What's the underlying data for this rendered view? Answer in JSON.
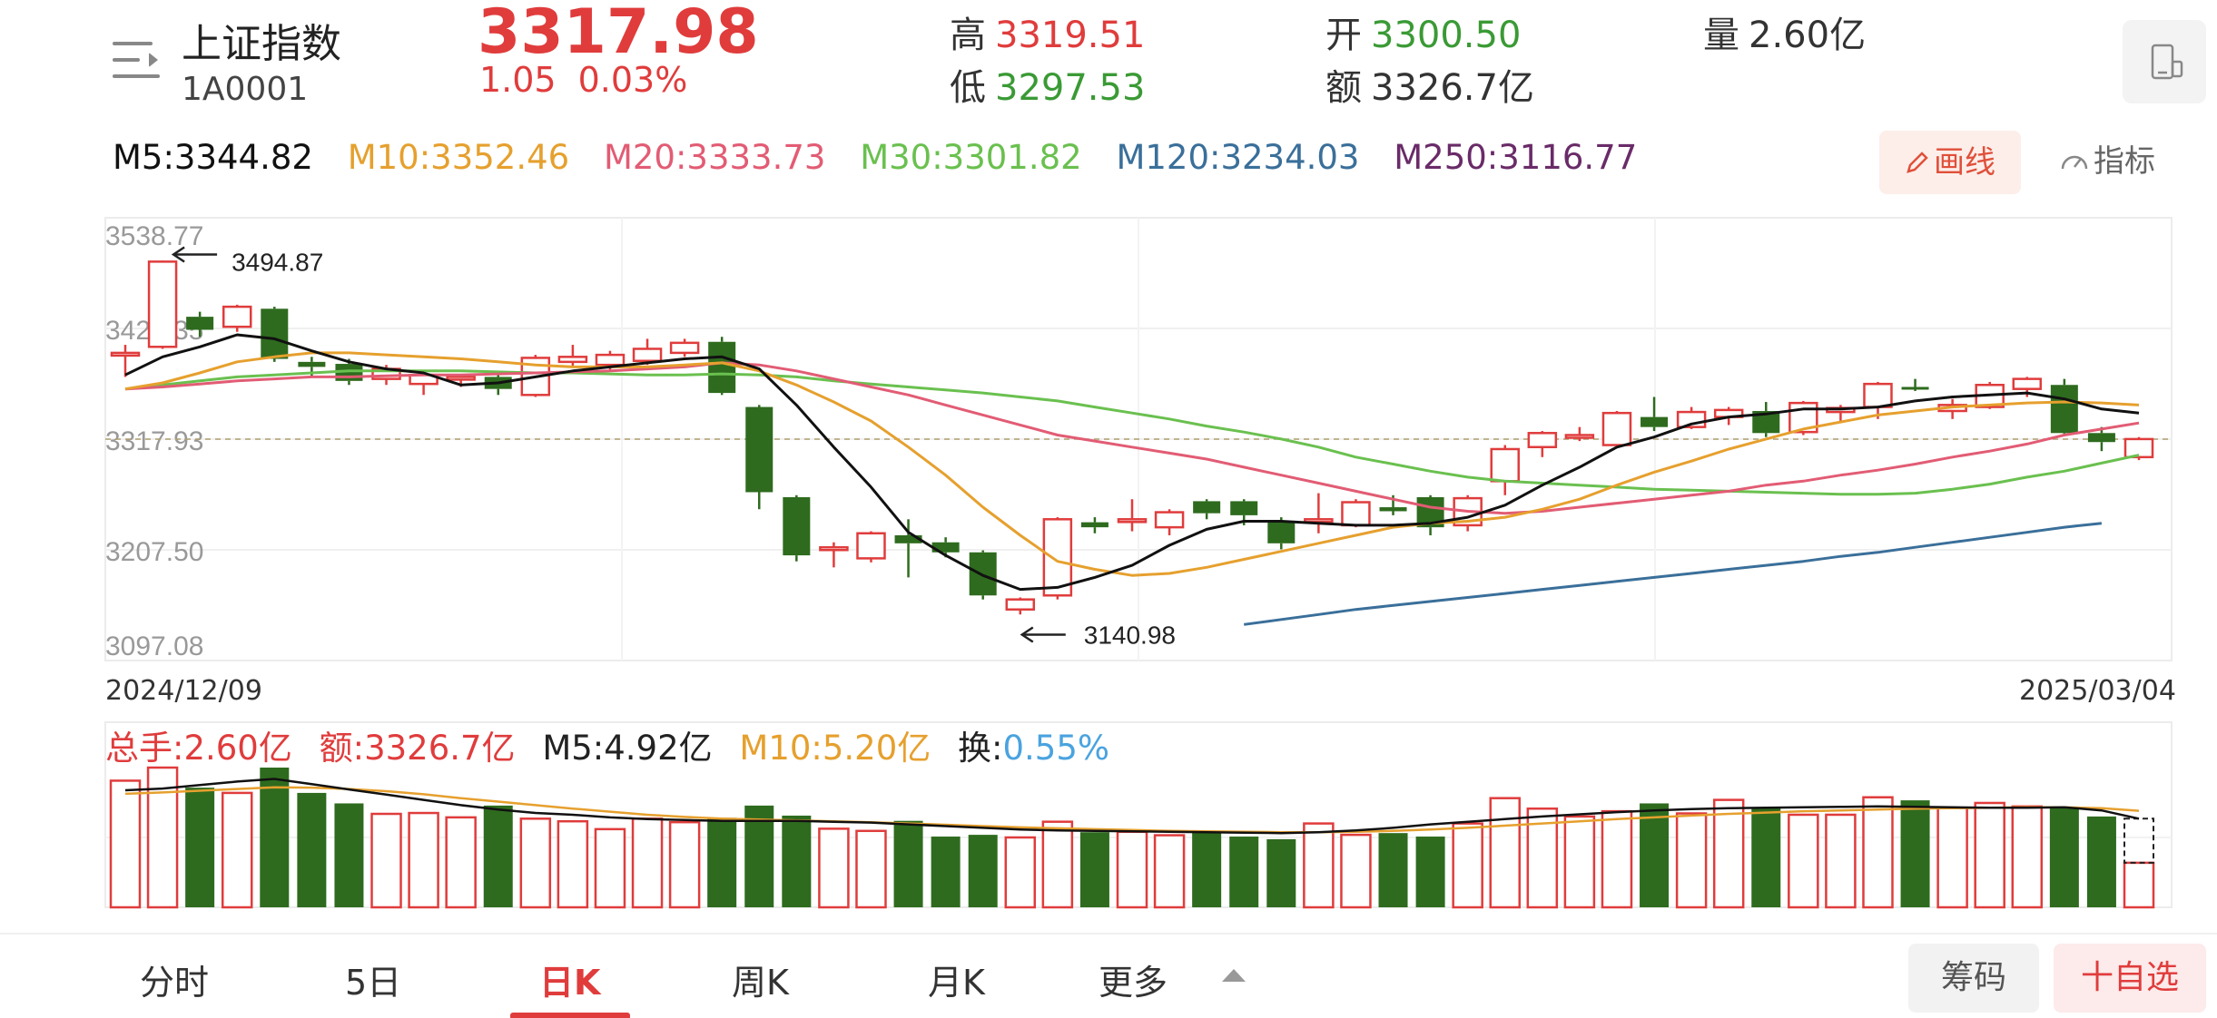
{
  "header": {
    "name": "上证指数",
    "code": "1A0001",
    "price": "3317.98",
    "change": "1.05",
    "change_pct": "0.03%",
    "high_label": "高",
    "high": "3319.51",
    "low_label": "低",
    "low": "3297.53",
    "open_label": "开",
    "open": "3300.50",
    "amount_label": "额",
    "amount": "3326.7亿",
    "volume_label": "量",
    "volume": "2.60亿"
  },
  "ma": {
    "m5": "M5:3344.82",
    "m10": "M10:3352.46",
    "m20": "M20:3333.73",
    "m30": "M30:3301.82",
    "m120": "M120:3234.03",
    "m250": "M250:3116.77"
  },
  "tools": {
    "draw": "画线",
    "indicator": "指标"
  },
  "colors": {
    "up": "#e03c3c",
    "down": "#2e6b1e",
    "ma5": "#111111",
    "ma10": "#e6a02e",
    "ma20": "#e25c74",
    "ma30": "#6ac04f",
    "ma120": "#3a6f9a",
    "ma250": "#6a2b68"
  },
  "chart_data": {
    "type": "candlestick",
    "y_ticks": [
      "3538.77",
      "3428.35",
      "3317.93",
      "3207.50",
      "3097.08"
    ],
    "ylim": [
      3097.08,
      3538.77
    ],
    "start_date": "2024/12/09",
    "end_date": "2025/03/04",
    "max_label": "3494.87",
    "min_label": "3140.98",
    "current_line": 3317.98,
    "candles": [
      [
        3402,
        3404,
        3380,
        3412
      ],
      [
        3410,
        3495,
        3408,
        3496
      ],
      [
        3440,
        3427,
        3420,
        3445
      ],
      [
        3430,
        3450,
        3425,
        3452
      ],
      [
        3448,
        3398,
        3395,
        3450
      ],
      [
        3395,
        3390,
        3380,
        3400
      ],
      [
        3393,
        3376,
        3372,
        3398
      ],
      [
        3378,
        3388,
        3372,
        3392
      ],
      [
        3373,
        3382,
        3362,
        3386
      ],
      [
        3378,
        3380,
        3370,
        3382
      ],
      [
        3380,
        3368,
        3362,
        3382
      ],
      [
        3362,
        3399,
        3360,
        3402
      ],
      [
        3395,
        3400,
        3390,
        3412
      ],
      [
        3392,
        3402,
        3385,
        3406
      ],
      [
        3396,
        3408,
        3392,
        3418
      ],
      [
        3404,
        3414,
        3400,
        3418
      ],
      [
        3415,
        3364,
        3362,
        3420
      ],
      [
        3350,
        3265,
        3248,
        3352
      ],
      [
        3260,
        3202,
        3196,
        3262
      ],
      [
        3208,
        3210,
        3190,
        3215
      ],
      [
        3199,
        3224,
        3195,
        3226
      ],
      [
        3222,
        3214,
        3180,
        3238
      ],
      [
        3215,
        3205,
        3200,
        3220
      ],
      [
        3205,
        3162,
        3158,
        3207
      ],
      [
        3148,
        3158,
        3143,
        3160
      ],
      [
        3162,
        3238,
        3158,
        3240
      ],
      [
        3235,
        3230,
        3224,
        3240
      ],
      [
        3236,
        3238,
        3226,
        3258
      ],
      [
        3230,
        3245,
        3222,
        3248
      ],
      [
        3256,
        3244,
        3238,
        3258
      ],
      [
        3256,
        3242,
        3232,
        3258
      ],
      [
        3236,
        3214,
        3208,
        3240
      ],
      [
        3236,
        3238,
        3224,
        3264
      ],
      [
        3232,
        3255,
        3230,
        3258
      ],
      [
        3250,
        3246,
        3242,
        3262
      ],
      [
        3260,
        3230,
        3222,
        3262
      ],
      [
        3232,
        3259,
        3226,
        3262
      ],
      [
        3276,
        3308,
        3262,
        3312
      ],
      [
        3310,
        3324,
        3300,
        3326
      ],
      [
        3320,
        3322,
        3316,
        3330
      ],
      [
        3312,
        3344,
        3310,
        3346
      ],
      [
        3340,
        3330,
        3326,
        3360
      ],
      [
        3330,
        3345,
        3328,
        3350
      ],
      [
        3340,
        3347,
        3332,
        3350
      ],
      [
        3346,
        3324,
        3320,
        3355
      ],
      [
        3325,
        3354,
        3322,
        3356
      ],
      [
        3345,
        3349,
        3335,
        3352
      ],
      [
        3350,
        3373,
        3338,
        3375
      ],
      [
        3370,
        3368,
        3366,
        3378
      ],
      [
        3346,
        3352,
        3338,
        3358
      ],
      [
        3350,
        3372,
        3348,
        3375
      ],
      [
        3368,
        3378,
        3360,
        3380
      ],
      [
        3372,
        3324,
        3322,
        3378
      ],
      [
        3324,
        3315,
        3306,
        3330
      ],
      [
        3300,
        3318,
        3297,
        3320
      ]
    ],
    "ma5": [
      3382,
      3400,
      3410,
      3422,
      3418,
      3406,
      3395,
      3388,
      3384,
      3372,
      3374,
      3380,
      3386,
      3390,
      3394,
      3398,
      3400,
      3388,
      3352,
      3310,
      3270,
      3225,
      3202,
      3182,
      3168,
      3170,
      3180,
      3192,
      3212,
      3228,
      3236,
      3236,
      3234,
      3232,
      3232,
      3234,
      3240,
      3252,
      3272,
      3290,
      3310,
      3320,
      3333,
      3340,
      3343,
      3348,
      3348,
      3350,
      3356,
      3360,
      3362,
      3364,
      3358,
      3348,
      3344
    ],
    "ma10": [
      3368,
      3374,
      3384,
      3395,
      3400,
      3404,
      3404,
      3402,
      3400,
      3398,
      3395,
      3392,
      3390,
      3390,
      3390,
      3392,
      3394,
      3386,
      3372,
      3355,
      3336,
      3310,
      3282,
      3250,
      3222,
      3196,
      3188,
      3182,
      3184,
      3190,
      3198,
      3206,
      3214,
      3222,
      3230,
      3234,
      3236,
      3240,
      3248,
      3258,
      3272,
      3285,
      3296,
      3308,
      3318,
      3328,
      3335,
      3342,
      3346,
      3350,
      3352,
      3354,
      3355,
      3354,
      3352
    ],
    "ma20": [
      3368,
      3370,
      3373,
      3376,
      3378,
      3380,
      3380,
      3381,
      3382,
      3382,
      3383,
      3384,
      3385,
      3386,
      3388,
      3390,
      3394,
      3392,
      3386,
      3378,
      3370,
      3362,
      3352,
      3342,
      3332,
      3322,
      3316,
      3310,
      3304,
      3298,
      3290,
      3282,
      3274,
      3266,
      3258,
      3250,
      3246,
      3244,
      3246,
      3250,
      3254,
      3258,
      3262,
      3266,
      3272,
      3276,
      3282,
      3287,
      3293,
      3300,
      3306,
      3313,
      3322,
      3328,
      3334
    ],
    "ma30": [
      3368,
      3372,
      3376,
      3380,
      3382,
      3384,
      3386,
      3386,
      3386,
      3386,
      3385,
      3384,
      3384,
      3383,
      3382,
      3382,
      3383,
      3382,
      3380,
      3376,
      3373,
      3370,
      3367,
      3364,
      3360,
      3356,
      3350,
      3344,
      3338,
      3331,
      3325,
      3318,
      3310,
      3300,
      3293,
      3286,
      3280,
      3276,
      3274,
      3272,
      3270,
      3268,
      3267,
      3266,
      3265,
      3264,
      3263,
      3263,
      3264,
      3268,
      3273,
      3280,
      3286,
      3294,
      3302
    ],
    "ma120": [
      3133,
      3138,
      3143,
      3148,
      3152,
      3156,
      3160,
      3164,
      3168,
      3172,
      3176,
      3180,
      3184,
      3188,
      3192,
      3196,
      3201,
      3205,
      3210,
      3215,
      3220,
      3225,
      3230,
      3234
    ],
    "ma120_start_index": 30,
    "volume": {
      "ylim": [
        0,
        3.2
      ],
      "values": [
        2.9,
        3.2,
        2.74,
        2.62,
        3.2,
        2.62,
        2.38,
        2.14,
        2.16,
        2.06,
        2.33,
        2.03,
        1.97,
        1.79,
        2.03,
        1.95,
        2.05,
        2.33,
        2.1,
        1.8,
        1.75,
        1.98,
        1.62,
        1.66,
        1.6,
        1.96,
        1.72,
        1.73,
        1.65,
        1.72,
        1.62,
        1.56,
        1.92,
        1.66,
        1.7,
        1.62,
        1.92,
        2.5,
        2.26,
        2.08,
        2.2,
        2.38,
        2.15,
        2.46,
        2.28,
        2.12,
        2.12,
        2.52,
        2.45,
        2.28,
        2.39,
        2.31,
        2.28,
        2.08,
        1.02
      ],
      "ma5": [
        2.68,
        2.72,
        2.8,
        2.88,
        2.94,
        2.82,
        2.7,
        2.58,
        2.46,
        2.34,
        2.24,
        2.16,
        2.12,
        2.06,
        2.02,
        2.0,
        1.98,
        1.98,
        1.98,
        1.96,
        1.94,
        1.9,
        1.86,
        1.82,
        1.78,
        1.76,
        1.75,
        1.74,
        1.73,
        1.72,
        1.71,
        1.7,
        1.72,
        1.76,
        1.82,
        1.9,
        1.96,
        2.02,
        2.08,
        2.13,
        2.18,
        2.22,
        2.25,
        2.27,
        2.28,
        2.29,
        2.3,
        2.31,
        2.3,
        2.29,
        2.28,
        2.28,
        2.29,
        2.22,
        2.03
      ],
      "ma10": [
        2.6,
        2.63,
        2.67,
        2.71,
        2.75,
        2.74,
        2.71,
        2.66,
        2.59,
        2.5,
        2.42,
        2.34,
        2.26,
        2.19,
        2.12,
        2.07,
        2.03,
        2.01,
        1.99,
        1.97,
        1.95,
        1.92,
        1.89,
        1.86,
        1.83,
        1.81,
        1.79,
        1.77,
        1.75,
        1.74,
        1.73,
        1.72,
        1.72,
        1.73,
        1.75,
        1.78,
        1.82,
        1.87,
        1.92,
        1.97,
        2.02,
        2.06,
        2.1,
        2.14,
        2.17,
        2.2,
        2.22,
        2.24,
        2.26,
        2.27,
        2.28,
        2.29,
        2.29,
        2.27,
        2.21
      ]
    }
  },
  "volume_info": {
    "total": "总手:2.60亿",
    "amount": "额:3326.7亿",
    "m5": "M5:4.92亿",
    "m10": "M10:5.20亿",
    "turnover_label": "换:",
    "turnover": "0.55%"
  },
  "tabs": [
    {
      "label": "分时"
    },
    {
      "label": "5日"
    },
    {
      "label": "日K"
    },
    {
      "label": "周K"
    },
    {
      "label": "月K"
    },
    {
      "label": "更多"
    }
  ],
  "actions": {
    "chips": "筹码",
    "favorite": "十自选"
  }
}
